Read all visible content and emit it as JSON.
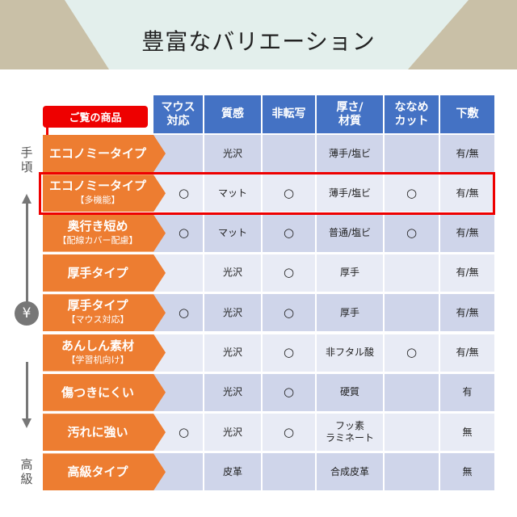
{
  "title": "豊富なバリエーション",
  "highlight_label": "ご覧の商品",
  "axis": {
    "top": "手頃",
    "bottom": "高級",
    "middle_icon": "yen-icon",
    "middle_symbol": "¥"
  },
  "colors": {
    "header": "#4472c4",
    "label": "#ed7d31",
    "highlight": "#e00000"
  },
  "columns": [
    "マウス\n対応",
    "質感",
    "非転写",
    "厚さ/\n材質",
    "ななめ\nカット",
    "下敷"
  ],
  "rows": [
    {
      "name": "エコノミータイプ",
      "sub": "",
      "cells": [
        "",
        "光沢",
        "",
        "薄手/塩ビ",
        "",
        "有/無"
      ]
    },
    {
      "name": "エコノミータイプ",
      "sub": "【多機能】",
      "cells": [
        "○",
        "マット",
        "○",
        "薄手/塩ビ",
        "○",
        "有/無"
      ]
    },
    {
      "name": "奥行き短め",
      "sub": "【配線カバー配慮】",
      "cells": [
        "○",
        "マット",
        "○",
        "普通/塩ビ",
        "○",
        "有/無"
      ]
    },
    {
      "name": "厚手タイプ",
      "sub": "",
      "cells": [
        "",
        "光沢",
        "○",
        "厚手",
        "",
        "有/無"
      ]
    },
    {
      "name": "厚手タイプ",
      "sub": "【マウス対応】",
      "cells": [
        "○",
        "光沢",
        "○",
        "厚手",
        "",
        "有/無"
      ]
    },
    {
      "name": "あんしん素材",
      "sub": "【学習机向け】",
      "cells": [
        "",
        "光沢",
        "○",
        "非フタル酸",
        "○",
        "有/無"
      ]
    },
    {
      "name": "傷つきにくい",
      "sub": "",
      "cells": [
        "",
        "光沢",
        "○",
        "硬質",
        "",
        "有"
      ]
    },
    {
      "name": "汚れに強い",
      "sub": "",
      "cells": [
        "○",
        "光沢",
        "○",
        "フッ素\nラミネート",
        "",
        "無"
      ]
    },
    {
      "name": "高級タイプ",
      "sub": "",
      "cells": [
        "",
        "皮革",
        "",
        "合成皮革",
        "",
        "無"
      ]
    }
  ]
}
